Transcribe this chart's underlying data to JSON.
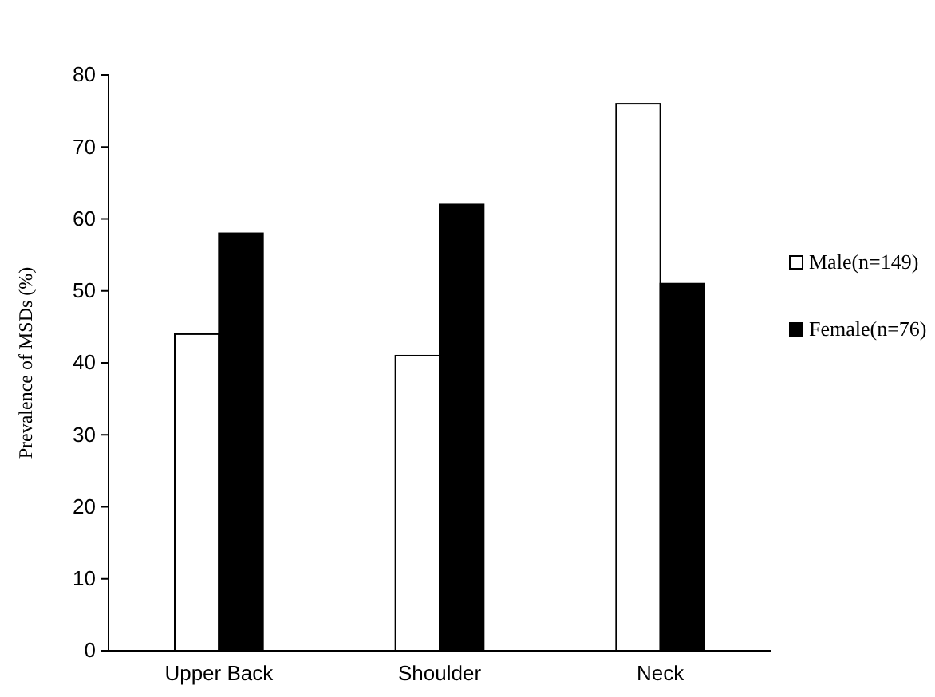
{
  "chart_data": {
    "type": "bar",
    "ylabel": "Prevalence of MSDs (%)",
    "categories": [
      "Upper Back",
      "Shoulder",
      "Neck"
    ],
    "series": [
      {
        "name": "Male(n=149)",
        "color": "#ffffff",
        "values": [
          44,
          41,
          76
        ]
      },
      {
        "name": "Female(n=76)",
        "color": "#000000",
        "values": [
          58,
          62,
          51
        ]
      }
    ],
    "ylim": [
      0,
      80
    ],
    "yticks": [
      0,
      10,
      20,
      30,
      40,
      50,
      60,
      70,
      80
    ],
    "grid": false,
    "legend": "right"
  }
}
